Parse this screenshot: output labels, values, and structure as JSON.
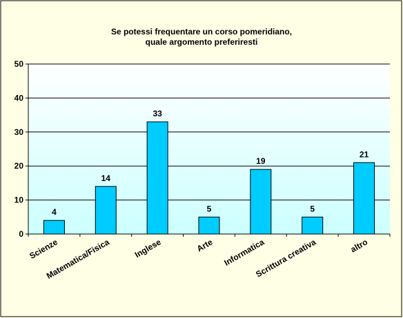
{
  "chart_data": {
    "type": "bar",
    "title": "Se potessi  frequentare  un corso  pomeridiano,",
    "subtitle": "quale argomento  preferiresti",
    "categories": [
      "Scienze",
      "Matematica/Fisica",
      "Inglese",
      "Arte",
      "Informatica",
      "Scrittura creativa",
      "altro"
    ],
    "values": [
      4,
      14,
      33,
      5,
      19,
      5,
      21
    ],
    "ylim": [
      0,
      50
    ],
    "yticks": [
      0,
      10,
      20,
      30,
      40,
      50
    ],
    "grid": true,
    "legend": "none",
    "colors": {
      "bar_fill": "#00ccff",
      "bar_stroke": "#000000",
      "plot_bg_top": "#ffffff",
      "plot_bg_bottom": "#ccffff",
      "frame_bg": "#ffffe6",
      "frame_border": "#000000"
    }
  }
}
